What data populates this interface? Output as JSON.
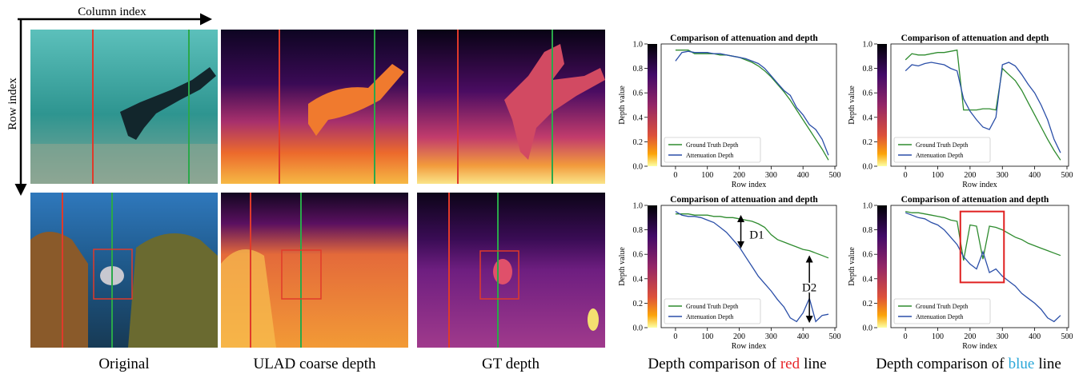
{
  "figure": {
    "column_axis": "Column index",
    "row_axis": "Row index",
    "captions": [
      "Original",
      "ULAD coarse depth",
      "GT depth"
    ],
    "comparison_captions": [
      {
        "text": "Depth comparison of",
        "highlight": "red",
        "color": "#e8262a",
        "suffix": "line"
      },
      {
        "text": "Depth comparison of",
        "highlight": "blue",
        "color": "#2aa7d8",
        "suffix": "line"
      }
    ]
  },
  "chart_data": [
    {
      "type": "line",
      "title": "Comparison of attenuation and depth",
      "xlabel": "Row index",
      "ylabel": "Depth value",
      "x": [
        0,
        20,
        40,
        60,
        80,
        100,
        120,
        140,
        160,
        180,
        200,
        220,
        240,
        260,
        280,
        300,
        320,
        340,
        360,
        380,
        400,
        420,
        440,
        460,
        480
      ],
      "series": [
        {
          "name": "Ground Truth Depth",
          "color": "#2e8b2e",
          "values": [
            0.95,
            0.95,
            0.95,
            0.92,
            0.92,
            0.92,
            0.92,
            0.91,
            0.91,
            0.9,
            0.89,
            0.87,
            0.85,
            0.82,
            0.78,
            0.73,
            0.67,
            0.61,
            0.54,
            0.46,
            0.38,
            0.3,
            0.22,
            0.14,
            0.05
          ]
        },
        {
          "name": "Attenuation Depth",
          "color": "#2b4fa8",
          "values": [
            0.86,
            0.93,
            0.94,
            0.93,
            0.93,
            0.93,
            0.92,
            0.92,
            0.91,
            0.9,
            0.89,
            0.88,
            0.86,
            0.84,
            0.8,
            0.74,
            0.68,
            0.62,
            0.58,
            0.48,
            0.42,
            0.34,
            0.3,
            0.22,
            0.09
          ]
        }
      ],
      "xlim": [
        -45,
        505
      ],
      "ylim": [
        0,
        1
      ],
      "xticks": [
        0,
        100,
        200,
        300,
        400,
        500
      ],
      "yticks": [
        {
          "value": 0,
          "label": "0.0"
        },
        0.2,
        0.4,
        0.6,
        0.8,
        {
          "value": 1,
          "label": "1.0"
        }
      ],
      "legend": "lower left"
    },
    {
      "type": "line",
      "title": "Comparison of attenuation and depth",
      "xlabel": "Row index",
      "ylabel": "Depth value",
      "x": [
        0,
        20,
        40,
        60,
        80,
        100,
        120,
        140,
        160,
        180,
        200,
        220,
        240,
        260,
        280,
        300,
        320,
        340,
        360,
        380,
        400,
        420,
        440,
        460,
        480
      ],
      "series": [
        {
          "name": "Ground Truth Depth",
          "color": "#2e8b2e",
          "values": [
            0.87,
            0.92,
            0.91,
            0.91,
            0.92,
            0.93,
            0.93,
            0.94,
            0.95,
            0.46,
            0.46,
            0.46,
            0.47,
            0.47,
            0.46,
            0.8,
            0.75,
            0.7,
            0.62,
            0.52,
            0.42,
            0.32,
            0.22,
            0.13,
            0.05
          ]
        },
        {
          "name": "Attenuation Depth",
          "color": "#2b4fa8",
          "values": [
            0.78,
            0.83,
            0.82,
            0.84,
            0.85,
            0.84,
            0.83,
            0.8,
            0.78,
            0.55,
            0.45,
            0.38,
            0.32,
            0.3,
            0.4,
            0.83,
            0.85,
            0.82,
            0.75,
            0.67,
            0.6,
            0.5,
            0.38,
            0.22,
            0.11
          ]
        }
      ],
      "xlim": [
        -45,
        505
      ],
      "ylim": [
        0,
        1
      ],
      "xticks": [
        0,
        100,
        200,
        300,
        400,
        500
      ],
      "yticks": [
        {
          "value": 0,
          "label": "0.0"
        },
        0.2,
        0.4,
        0.6,
        0.8,
        {
          "value": 1,
          "label": "1.0"
        }
      ],
      "legend": "lower left"
    },
    {
      "type": "line",
      "title": "Comparison of attenuation and depth",
      "xlabel": "Row index",
      "ylabel": "Depth value",
      "x": [
        0,
        20,
        40,
        60,
        80,
        100,
        120,
        140,
        160,
        180,
        200,
        220,
        240,
        260,
        280,
        300,
        320,
        340,
        360,
        380,
        400,
        420,
        440,
        460,
        480
      ],
      "series": [
        {
          "name": "Ground Truth Depth",
          "color": "#2e8b2e",
          "values": [
            0.93,
            0.93,
            0.93,
            0.92,
            0.92,
            0.92,
            0.91,
            0.91,
            0.9,
            0.9,
            0.89,
            0.88,
            0.87,
            0.85,
            0.82,
            0.76,
            0.72,
            0.7,
            0.68,
            0.66,
            0.64,
            0.63,
            0.61,
            0.59,
            0.57
          ]
        },
        {
          "name": "Attenuation Depth",
          "color": "#2b4fa8",
          "values": [
            0.95,
            0.92,
            0.91,
            0.91,
            0.9,
            0.88,
            0.86,
            0.82,
            0.78,
            0.72,
            0.66,
            0.58,
            0.5,
            0.42,
            0.36,
            0.3,
            0.23,
            0.17,
            0.08,
            0.05,
            0.12,
            0.24,
            0.05,
            0.1,
            0.11
          ]
        }
      ],
      "xlim": [
        -45,
        505
      ],
      "ylim": [
        0,
        1
      ],
      "xticks": [
        0,
        100,
        200,
        300,
        400,
        500
      ],
      "yticks": [
        {
          "value": 0,
          "label": "0.0"
        },
        0.2,
        0.4,
        0.6,
        0.8,
        {
          "value": 1,
          "label": "1.0"
        }
      ],
      "legend": "lower left",
      "annotations": [
        "D1",
        "D2"
      ]
    },
    {
      "type": "line",
      "title": "Comparison of attenuation and depth",
      "xlabel": "Row index",
      "ylabel": "Depth value",
      "x": [
        0,
        20,
        40,
        60,
        80,
        100,
        120,
        140,
        160,
        180,
        200,
        220,
        240,
        260,
        280,
        300,
        320,
        340,
        360,
        380,
        400,
        420,
        440,
        460,
        480
      ],
      "series": [
        {
          "name": "Ground Truth Depth",
          "color": "#2e8b2e",
          "values": [
            0.95,
            0.94,
            0.94,
            0.93,
            0.92,
            0.91,
            0.9,
            0.88,
            0.87,
            0.55,
            0.84,
            0.83,
            0.56,
            0.83,
            0.82,
            0.8,
            0.77,
            0.74,
            0.72,
            0.69,
            0.67,
            0.65,
            0.63,
            0.61,
            0.59
          ]
        },
        {
          "name": "Attenuation Depth",
          "color": "#2b4fa8",
          "values": [
            0.94,
            0.92,
            0.9,
            0.89,
            0.86,
            0.84,
            0.8,
            0.74,
            0.68,
            0.58,
            0.52,
            0.48,
            0.62,
            0.45,
            0.48,
            0.42,
            0.38,
            0.34,
            0.28,
            0.24,
            0.2,
            0.15,
            0.08,
            0.05,
            0.1
          ]
        }
      ],
      "xlim": [
        -45,
        505
      ],
      "ylim": [
        0,
        1
      ],
      "xticks": [
        0,
        100,
        200,
        300,
        400,
        500
      ],
      "yticks": [
        {
          "value": 0,
          "label": "0.0"
        },
        0.2,
        0.4,
        0.6,
        0.8,
        {
          "value": 1,
          "label": "1.0"
        }
      ],
      "legend": "lower left"
    }
  ]
}
